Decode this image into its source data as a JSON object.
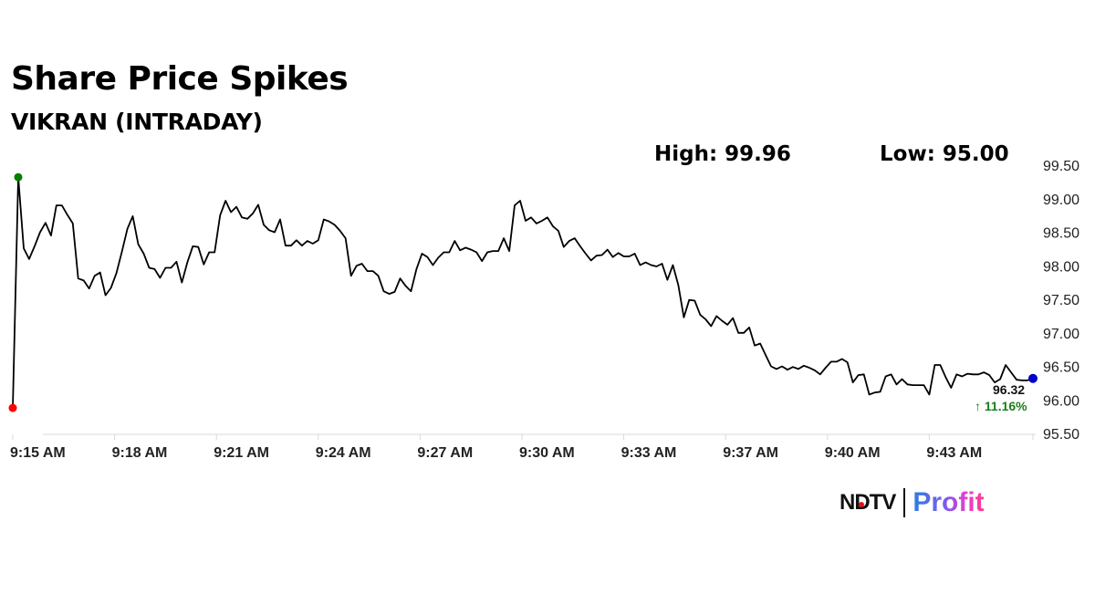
{
  "header": {
    "title": "Share Price Spikes",
    "subtitle": "VIKRAN (INTRADAY)",
    "high_label": "High: 99.96",
    "low_label": "Low: 95.00"
  },
  "annotations": {
    "last_price": "96.32",
    "change": "↑ 11.16%",
    "change_color": "#1a7f1a",
    "start_dot_color": "#ff0000",
    "high_dot_color": "#008000",
    "end_dot_color": "#0000cc"
  },
  "branding": {
    "ndtv": "NDTV",
    "profit": "Profit"
  },
  "chart_data": {
    "type": "line",
    "title": "Share Price Spikes",
    "subtitle": "VIKRAN (INTRADAY)",
    "xlabel": "",
    "ylabel": "",
    "ylim": [
      95.5,
      99.5
    ],
    "y_ticks": [
      "99.50",
      "99.00",
      "98.50",
      "98.00",
      "97.50",
      "97.00",
      "96.50",
      "96.00",
      "95.50"
    ],
    "x_ticks": [
      "9:15 AM",
      "9:18 AM",
      "9:21 AM",
      "9:24 AM",
      "9:27 AM",
      "9:30 AM",
      "9:33 AM",
      "9:37 AM",
      "9:40 AM",
      "9:43 AM"
    ],
    "grid": false,
    "legend": "none",
    "high": 99.96,
    "low": 95.0,
    "last": 96.32,
    "change_pct": 11.16,
    "series": [
      {
        "name": "VIKRAN",
        "values": [
          95.88,
          99.32,
          98.26,
          98.1,
          98.29,
          98.5,
          98.64,
          98.45,
          98.9,
          98.9,
          98.76,
          98.63,
          97.81,
          97.78,
          97.66,
          97.85,
          97.9,
          97.56,
          97.67,
          97.89,
          98.21,
          98.55,
          98.74,
          98.32,
          98.18,
          97.97,
          97.95,
          97.82,
          97.97,
          97.97,
          98.06,
          97.75,
          98.05,
          98.29,
          98.28,
          98.02,
          98.2,
          98.2,
          98.75,
          98.97,
          98.8,
          98.88,
          98.72,
          98.7,
          98.78,
          98.91,
          98.61,
          98.53,
          98.5,
          98.69,
          98.3,
          98.3,
          98.38,
          98.3,
          98.37,
          98.33,
          98.38,
          98.69,
          98.66,
          98.61,
          98.52,
          98.41,
          97.85,
          98.0,
          98.03,
          97.92,
          97.92,
          97.85,
          97.62,
          97.58,
          97.61,
          97.81,
          97.7,
          97.62,
          97.95,
          98.18,
          98.13,
          98.01,
          98.12,
          98.2,
          98.2,
          98.37,
          98.23,
          98.27,
          98.24,
          98.2,
          98.07,
          98.2,
          98.22,
          98.22,
          98.41,
          98.22,
          98.9,
          98.97,
          98.67,
          98.72,
          98.63,
          98.67,
          98.72,
          98.59,
          98.52,
          98.28,
          98.37,
          98.41,
          98.29,
          98.18,
          98.08,
          98.15,
          98.16,
          98.24,
          98.13,
          98.19,
          98.14,
          98.14,
          98.18,
          98.01,
          98.05,
          98.01,
          97.99,
          98.03,
          97.79,
          98.01,
          97.71,
          97.23,
          97.49,
          97.48,
          97.27,
          97.2,
          97.1,
          97.25,
          97.18,
          97.12,
          97.22,
          97.0,
          97.0,
          97.08,
          96.81,
          96.84,
          96.67,
          96.5,
          96.46,
          96.5,
          96.45,
          96.49,
          96.46,
          96.51,
          96.48,
          96.44,
          96.38,
          96.48,
          96.57,
          96.57,
          96.61,
          96.56,
          96.26,
          96.37,
          96.38,
          96.08,
          96.11,
          96.12,
          96.35,
          96.38,
          96.23,
          96.31,
          96.23,
          96.22,
          96.22,
          96.22,
          96.08,
          96.52,
          96.52,
          96.34,
          96.18,
          96.38,
          96.35,
          96.39,
          96.38,
          96.38,
          96.41,
          96.37,
          96.26,
          96.31,
          96.52,
          96.41,
          96.3,
          96.29,
          96.29,
          96.32
        ]
      }
    ]
  }
}
